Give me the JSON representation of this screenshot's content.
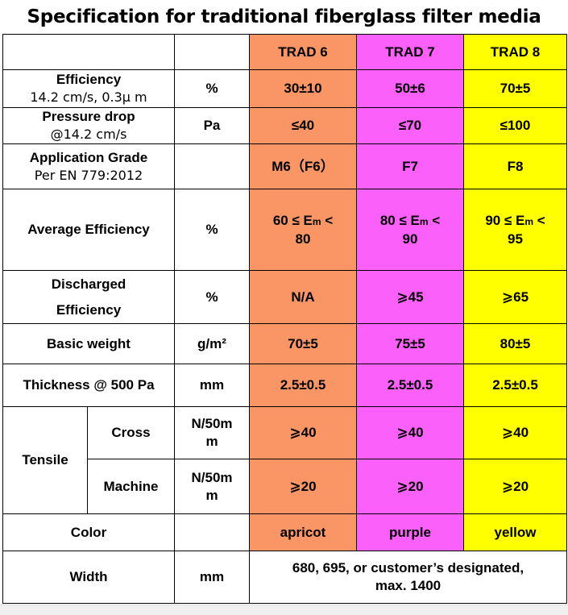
{
  "title": "Specification for traditional fiberglass filter media",
  "columns": [
    "TRAD 6",
    "TRAD 7",
    "TRAD 8"
  ],
  "rows": {
    "efficiency": {
      "label1": "Efficiency",
      "label2": "14.2 cm/s, 0.3μ m",
      "unit": "%",
      "values": [
        "30±10",
        "50±6",
        "70±5"
      ]
    },
    "pressure": {
      "label1": "Pressure drop",
      "label2": "@14.2 cm/s",
      "unit": "Pa",
      "values": [
        "≤40",
        "≤70",
        "≤100"
      ]
    },
    "grade": {
      "label1": "Application Grade",
      "label2": "Per EN 779:2012",
      "unit": "",
      "values": [
        "M6（F6）",
        "F7",
        "F8"
      ]
    },
    "average": {
      "label": "Average Efficiency",
      "unit": "%",
      "values": [
        {
          "pre": "60 ≤ E",
          "sub": "m",
          "post": " <",
          "line2": "80"
        },
        {
          "pre": "80 ≤ E",
          "sub": "m",
          "post": " <",
          "line2": "90"
        },
        {
          "pre": "90 ≤ E",
          "sub": "m",
          "post": " <",
          "line2": "95"
        }
      ]
    },
    "discharged": {
      "label1": "Discharged",
      "label2": "Efficiency",
      "unit": "%",
      "values": [
        "N/A",
        "⩾45",
        "⩾65"
      ]
    },
    "weight": {
      "label": "Basic weight",
      "unit": "g/m²",
      "values": [
        "70±5",
        "75±5",
        "80±5"
      ]
    },
    "thickness": {
      "label": "Thickness @ 500 Pa",
      "unit": "mm",
      "values": [
        "2.5±0.5",
        "2.5±0.5",
        "2.5±0.5"
      ]
    },
    "tensile": {
      "label": "Tensile",
      "cross": {
        "label": "Cross",
        "unit1": "N/50m",
        "unit2": "m",
        "values": [
          "⩾40",
          "⩾40",
          "⩾40"
        ]
      },
      "machine": {
        "label": "Machine",
        "unit1": "N/50m",
        "unit2": "m",
        "values": [
          "⩾20",
          "⩾20",
          "⩾20"
        ]
      }
    },
    "color": {
      "label": "Color",
      "unit": "",
      "values": [
        "apricot",
        "purple",
        "yellow"
      ]
    },
    "width": {
      "label": "Width",
      "unit": "mm",
      "line1": "680, 695, or customer’s designated,",
      "line2": "max. 1400"
    }
  },
  "colors": {
    "trad6": "#fa9566",
    "trad7": "#fb61fa",
    "trad8": "#ffff00"
  }
}
